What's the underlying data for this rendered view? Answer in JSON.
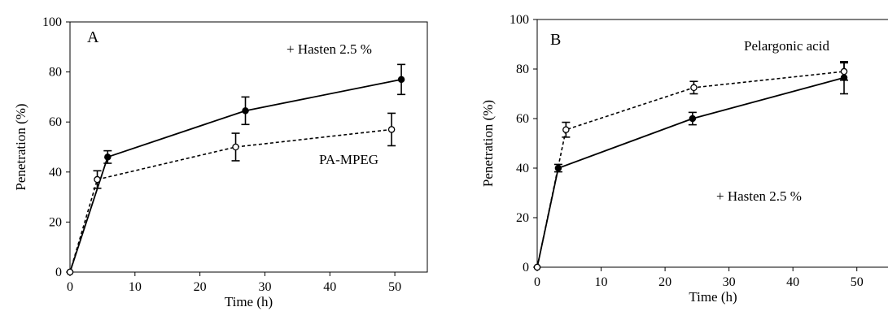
{
  "chart_data": [
    {
      "type": "line",
      "title": "",
      "panel_label": "A",
      "xlabel": "Time (h)",
      "ylabel": "Penetration (%)",
      "xlim": [
        0,
        55
      ],
      "ylim": [
        0,
        100
      ],
      "xticks": [
        0,
        10,
        20,
        30,
        40,
        50
      ],
      "yticks": [
        0,
        20,
        40,
        60,
        80,
        100
      ],
      "grid": false,
      "legend": "none",
      "series": [
        {
          "name": "+ Hasten 2.5 %",
          "style": "solid",
          "marker": "filled-circle",
          "color": "#000000",
          "x": [
            0,
            5.8,
            27,
            51
          ],
          "y": [
            0,
            46,
            64.5,
            77
          ],
          "err": [
            0,
            2.5,
            5.5,
            6
          ]
        },
        {
          "name": "PA-MPEG",
          "style": "dashed",
          "marker": "open-circle",
          "color": "#000000",
          "x": [
            0,
            4.2,
            25.5,
            49.5
          ],
          "y": [
            0,
            37,
            50,
            57
          ],
          "err": [
            0,
            3.5,
            5.5,
            6.5
          ]
        }
      ]
    },
    {
      "type": "line",
      "title": "",
      "panel_label": "B",
      "xlabel": "Time (h)",
      "ylabel": "Penetration (%)",
      "xlim": [
        0,
        55
      ],
      "ylim": [
        0,
        100
      ],
      "xticks": [
        0,
        10,
        20,
        30,
        40,
        50
      ],
      "yticks": [
        0,
        20,
        40,
        60,
        80,
        100
      ],
      "grid": false,
      "legend": "none",
      "series": [
        {
          "name": "+ Hasten 2.5 %",
          "style": "solid",
          "marker": "filled-circle",
          "color": "#000000",
          "x": [
            0,
            3.3,
            24.3,
            48
          ],
          "y": [
            0,
            40,
            60,
            76.5
          ],
          "err": [
            0,
            1.5,
            2.5,
            6.5
          ]
        },
        {
          "name": "Pelargonic acid",
          "style": "dashed",
          "marker": "open-circle",
          "color": "#000000",
          "x": [
            0,
            4.5,
            24.5,
            48
          ],
          "y": [
            0,
            55.5,
            72.5,
            79
          ],
          "err": [
            0,
            3,
            2.5,
            3.5
          ]
        }
      ]
    }
  ]
}
